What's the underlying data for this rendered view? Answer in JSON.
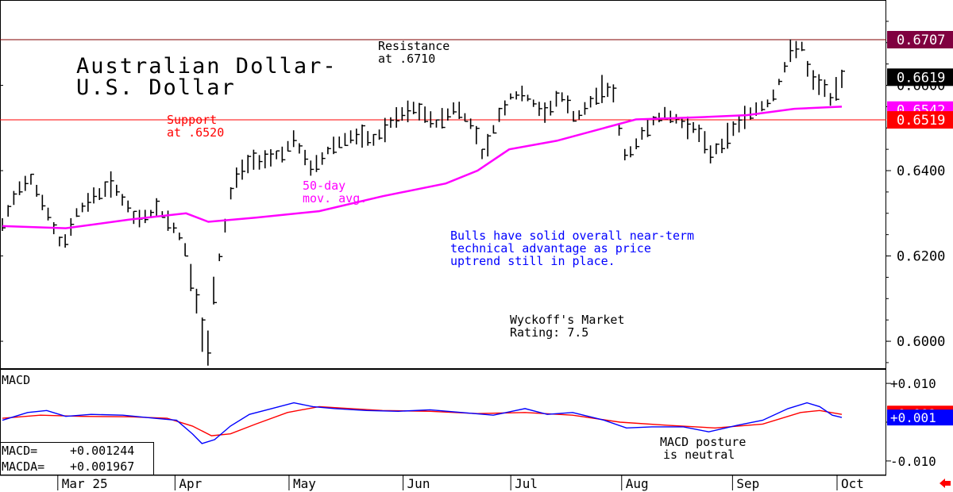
{
  "chart_data": [
    {
      "type": "bar",
      "subtype": "ohlc",
      "title": "Australian Dollar-\nU.S. Dollar",
      "title_lines": [
        "Australian Dollar-",
        "U.S. Dollar"
      ],
      "yticks": [
        0.6,
        0.62,
        0.64,
        0.66
      ],
      "ytick_labels": [
        "0.6000",
        "0.6200",
        "0.6400",
        "0.6600"
      ],
      "ylim": [
        0.5935,
        0.68
      ],
      "xlabels": [
        "Mar 25",
        "Apr",
        "May",
        "Jun",
        "Jul",
        "Aug",
        "Sep",
        "Oct"
      ],
      "bar_count": 148,
      "price_path": [
        [
          0,
          0.627
        ],
        [
          5,
          0.636
        ],
        [
          9,
          0.6385
        ],
        [
          13,
          0.632
        ],
        [
          19,
          0.6215
        ],
        [
          23,
          0.63
        ],
        [
          29,
          0.634
        ],
        [
          35,
          0.637
        ],
        [
          42,
          0.628
        ],
        [
          49,
          0.631
        ],
        [
          55,
          0.626
        ],
        [
          58,
          0.621
        ],
        [
          61,
          0.61
        ],
        [
          63,
          0.601
        ],
        [
          65,
          0.5975
        ],
        [
          67,
          0.613
        ],
        [
          70,
          0.626
        ],
        [
          73,
          0.638
        ],
        [
          78,
          0.642
        ],
        [
          83,
          0.643
        ],
        [
          88,
          0.644
        ],
        [
          92,
          0.647
        ],
        [
          98,
          0.64
        ],
        [
          104,
          0.646
        ],
        [
          110,
          0.648
        ],
        [
          117,
          0.647
        ],
        [
          124,
          0.652
        ],
        [
          130,
          0.6545
        ],
        [
          137,
          0.651
        ],
        [
          143,
          0.655
        ],
        [
          149,
          0.65
        ],
        [
          152,
          0.643
        ],
        [
          156,
          0.652
        ],
        [
          161,
          0.658
        ],
        [
          166,
          0.657
        ],
        [
          171,
          0.653
        ],
        [
          176,
          0.658
        ],
        [
          181,
          0.652
        ],
        [
          186,
          0.656
        ],
        [
          190,
          0.66
        ],
        [
          193,
          0.658
        ],
        [
          196,
          0.643
        ],
        [
          200,
          0.646
        ],
        [
          205,
          0.652
        ],
        [
          210,
          0.653
        ],
        [
          215,
          0.651
        ],
        [
          219,
          0.65
        ],
        [
          223,
          0.644
        ],
        [
          227,
          0.646
        ],
        [
          232,
          0.651
        ],
        [
          237,
          0.654
        ],
        [
          242,
          0.656
        ],
        [
          246,
          0.662
        ],
        [
          249,
          0.668
        ],
        [
          252,
          0.67
        ],
        [
          255,
          0.661
        ],
        [
          259,
          0.66
        ],
        [
          262,
          0.656
        ],
        [
          265,
          0.6619
        ]
      ],
      "series": [
        {
          "name": "50-day mov. avg.",
          "color": "#ff00ff",
          "points": [
            [
              0,
              0.627
            ],
            [
              20,
              0.6265
            ],
            [
              40,
              0.6285
            ],
            [
              58,
              0.63
            ],
            [
              65,
              0.628
            ],
            [
              80,
              0.629
            ],
            [
              100,
              0.6305
            ],
            [
              120,
              0.634
            ],
            [
              140,
              0.637
            ],
            [
              150,
              0.64
            ],
            [
              160,
              0.645
            ],
            [
              175,
              0.647
            ],
            [
              190,
              0.65
            ],
            [
              200,
              0.652
            ],
            [
              220,
              0.6525
            ],
            [
              235,
              0.653
            ],
            [
              250,
              0.6545
            ],
            [
              265,
              0.655
            ]
          ]
        }
      ],
      "hlines": [
        {
          "value": 0.6707,
          "color": "#800000",
          "label": "0.6707",
          "label_bg": "#800040"
        },
        {
          "value": 0.6519,
          "color": "#ff0000",
          "label": "0.6519",
          "label_bg": "#ff0000"
        }
      ],
      "price_tags": [
        {
          "value": 0.6619,
          "label": "0.6619",
          "bg": "#000000"
        },
        {
          "value": 0.6542,
          "label": "0.6542",
          "bg": "#ff00ff"
        }
      ],
      "annotations": [
        {
          "text": [
            "Resistance",
            "at .6710"
          ],
          "color": "#000000"
        },
        {
          "text": [
            "Support",
            "at .6520"
          ],
          "color": "#ff0000"
        },
        {
          "text": [
            "50-day",
            "mov. avg."
          ],
          "color": "#ff00ff"
        },
        {
          "text": [
            "Bulls have solid overall near-term",
            "technical advantage as price",
            "uptrend still in place."
          ],
          "color": "#0000ff"
        },
        {
          "text": [
            "Wyckoff's Market",
            "Rating: 7.5"
          ],
          "color": "#000000"
        }
      ],
      "grid": false
    },
    {
      "type": "line",
      "title": "MACD",
      "yticks": [
        0.01,
        0.0,
        -0.01
      ],
      "ytick_labels": [
        "+0.010",
        "",
        "-0.010"
      ],
      "ylim": [
        -0.0135,
        0.0135
      ],
      "series": [
        {
          "name": "MACD",
          "color": "#0000ff",
          "points": [
            [
              0,
              0.0005
            ],
            [
              8,
              0.0025
            ],
            [
              14,
              0.003
            ],
            [
              20,
              0.0015
            ],
            [
              28,
              0.002
            ],
            [
              38,
              0.0018
            ],
            [
              48,
              0.001
            ],
            [
              55,
              0.0005
            ],
            [
              60,
              -0.003
            ],
            [
              63,
              -0.0055
            ],
            [
              67,
              -0.0045
            ],
            [
              72,
              -0.001
            ],
            [
              78,
              0.002
            ],
            [
              85,
              0.0035
            ],
            [
              92,
              0.005
            ],
            [
              98,
              0.004
            ],
            [
              105,
              0.0035
            ],
            [
              115,
              0.003
            ],
            [
              125,
              0.0028
            ],
            [
              135,
              0.0032
            ],
            [
              145,
              0.0025
            ],
            [
              155,
              0.0018
            ],
            [
              165,
              0.0035
            ],
            [
              172,
              0.002
            ],
            [
              180,
              0.0025
            ],
            [
              190,
              0.0005
            ],
            [
              197,
              -0.0015
            ],
            [
              205,
              -0.0012
            ],
            [
              215,
              -0.0012
            ],
            [
              223,
              -0.0025
            ],
            [
              232,
              -0.0008
            ],
            [
              240,
              0.0005
            ],
            [
              248,
              0.0035
            ],
            [
              254,
              0.005
            ],
            [
              258,
              0.004
            ],
            [
              262,
              0.0018
            ],
            [
              265,
              0.0012
            ]
          ]
        },
        {
          "name": "MACDA",
          "color": "#ff0000",
          "points": [
            [
              0,
              0.001
            ],
            [
              12,
              0.0018
            ],
            [
              25,
              0.0015
            ],
            [
              40,
              0.0014
            ],
            [
              52,
              0.001
            ],
            [
              60,
              -0.001
            ],
            [
              66,
              -0.0035
            ],
            [
              72,
              -0.003
            ],
            [
              80,
              -0.0005
            ],
            [
              90,
              0.0025
            ],
            [
              100,
              0.004
            ],
            [
              110,
              0.0035
            ],
            [
              120,
              0.003
            ],
            [
              135,
              0.0028
            ],
            [
              150,
              0.0022
            ],
            [
              165,
              0.0025
            ],
            [
              180,
              0.0018
            ],
            [
              195,
              0.0
            ],
            [
              210,
              -0.0008
            ],
            [
              225,
              -0.0015
            ],
            [
              240,
              -0.0005
            ],
            [
              252,
              0.0025
            ],
            [
              258,
              0.003
            ],
            [
              265,
              0.002
            ]
          ]
        }
      ],
      "readouts": [
        {
          "label": "MACD=",
          "value": "+0.001244"
        },
        {
          "label": "MACDA=",
          "value": "+0.001967"
        }
      ],
      "tags": [
        {
          "value": 0.0022,
          "label": "+0.002",
          "bg": "#ff0000"
        },
        {
          "value": 0.0012,
          "label": "+0.001",
          "bg": "#0000ff"
        }
      ],
      "annotation": {
        "text": [
          "MACD posture",
          "is neutral"
        ],
        "color": "#000000"
      }
    }
  ]
}
